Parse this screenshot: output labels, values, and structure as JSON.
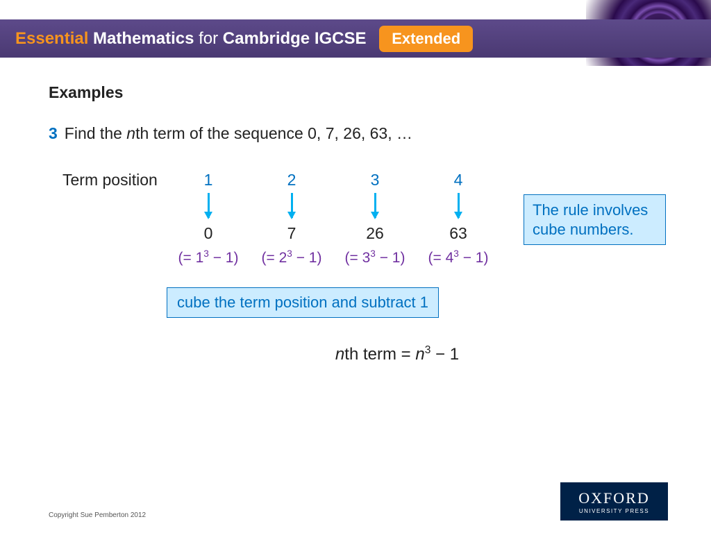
{
  "header": {
    "essential": "Essential",
    "mathematics": " Mathematics",
    "for": " for ",
    "cambridge": "Cambridge ",
    "igcse": "IGCSE",
    "badge": "Extended"
  },
  "content": {
    "examples_title": "Examples",
    "question_number": "3",
    "question_text_1": "Find the ",
    "question_text_n": "n",
    "question_text_2": "th term of the sequence  0, 7, 26, 63, …",
    "term_position_label": "Term position",
    "positions": [
      "1",
      "2",
      "3",
      "4"
    ],
    "values": [
      "0",
      "7",
      "26",
      "63"
    ],
    "expressions": {
      "e1_open": "(= 1",
      "e1_sup": "3",
      "e1_close": " − 1)",
      "e2_open": "(= 2",
      "e2_sup": "3",
      "e2_close": " − 1)",
      "e3_open": "(= 3",
      "e3_sup": "3",
      "e3_close": " − 1)",
      "e4_open": "(= 4",
      "e4_sup": "3",
      "e4_close": " − 1)"
    },
    "note_box": "The rule involves cube numbers.",
    "rule_box": "cube the term position and subtract 1",
    "formula_pre": "n",
    "formula_mid": "th term = ",
    "formula_n": "n",
    "formula_sup": "3",
    "formula_post": " − 1"
  },
  "footer": {
    "copyright": "Copyright Sue Pemberton 2012",
    "oxford_main": "OXFORD",
    "oxford_sub": "UNIVERSITY PRESS"
  },
  "colors": {
    "header_bg_top": "#5d4a8a",
    "header_bg_bottom": "#4a3972",
    "accent_orange": "#f7941e",
    "blue_text": "#0070c0",
    "arrow_color": "#00b0f0",
    "purple_text": "#7030a0",
    "box_bg": "#ccecff",
    "oxford_bg": "#002147"
  }
}
